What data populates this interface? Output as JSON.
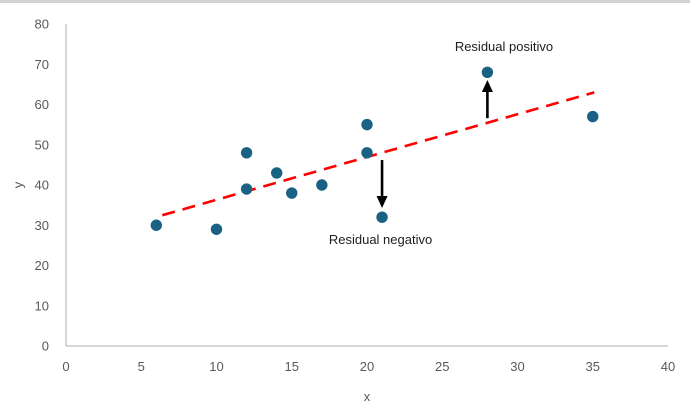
{
  "frame": {
    "top_border_color": "#d2d2d2",
    "background_color": "#ffffff"
  },
  "chart_data": {
    "type": "scatter",
    "title": "",
    "xlabel": "x",
    "ylabel": "y",
    "xlim": [
      0,
      40
    ],
    "ylim": [
      0,
      80
    ],
    "x_ticks": [
      0,
      5,
      10,
      15,
      20,
      25,
      30,
      35,
      40
    ],
    "y_ticks": [
      0,
      10,
      20,
      30,
      40,
      50,
      60,
      70,
      80
    ],
    "grid": false,
    "legend": "none",
    "points": [
      [
        6,
        30
      ],
      [
        10,
        29
      ],
      [
        12,
        39
      ],
      [
        12,
        48
      ],
      [
        14,
        43
      ],
      [
        15,
        38
      ],
      [
        17,
        40
      ],
      [
        20,
        48
      ],
      [
        20,
        55
      ],
      [
        21,
        32
      ],
      [
        28,
        68
      ],
      [
        35,
        57
      ]
    ],
    "trendline": {
      "style": "dashed",
      "x1": 6.4,
      "y1": 32.5,
      "x2": 35.1,
      "y2": 63,
      "color": "#ff0000"
    },
    "arrows": [
      {
        "name": "positive-residual-arrow",
        "direction": "up",
        "x": 28,
        "y_from": 56.6,
        "y_tip": 66.1
      },
      {
        "name": "negative-residual-arrow",
        "direction": "down",
        "x": 21,
        "y_from": 46.2,
        "y_tip": 34.3
      }
    ],
    "annotations": [
      {
        "text": "Residual positivo",
        "x": 29.1,
        "y": 74.3
      },
      {
        "text": "Residual negativo",
        "x": 20.9,
        "y": 26.3
      }
    ],
    "point_color": "#1a6284",
    "point_radius": 5.7,
    "axis_color": "#bfbfbf",
    "tick_label_color": "#595959",
    "axis_title_color": "#595959",
    "annotation_color": "#1f1f1f",
    "arrow_color": "#000000"
  }
}
